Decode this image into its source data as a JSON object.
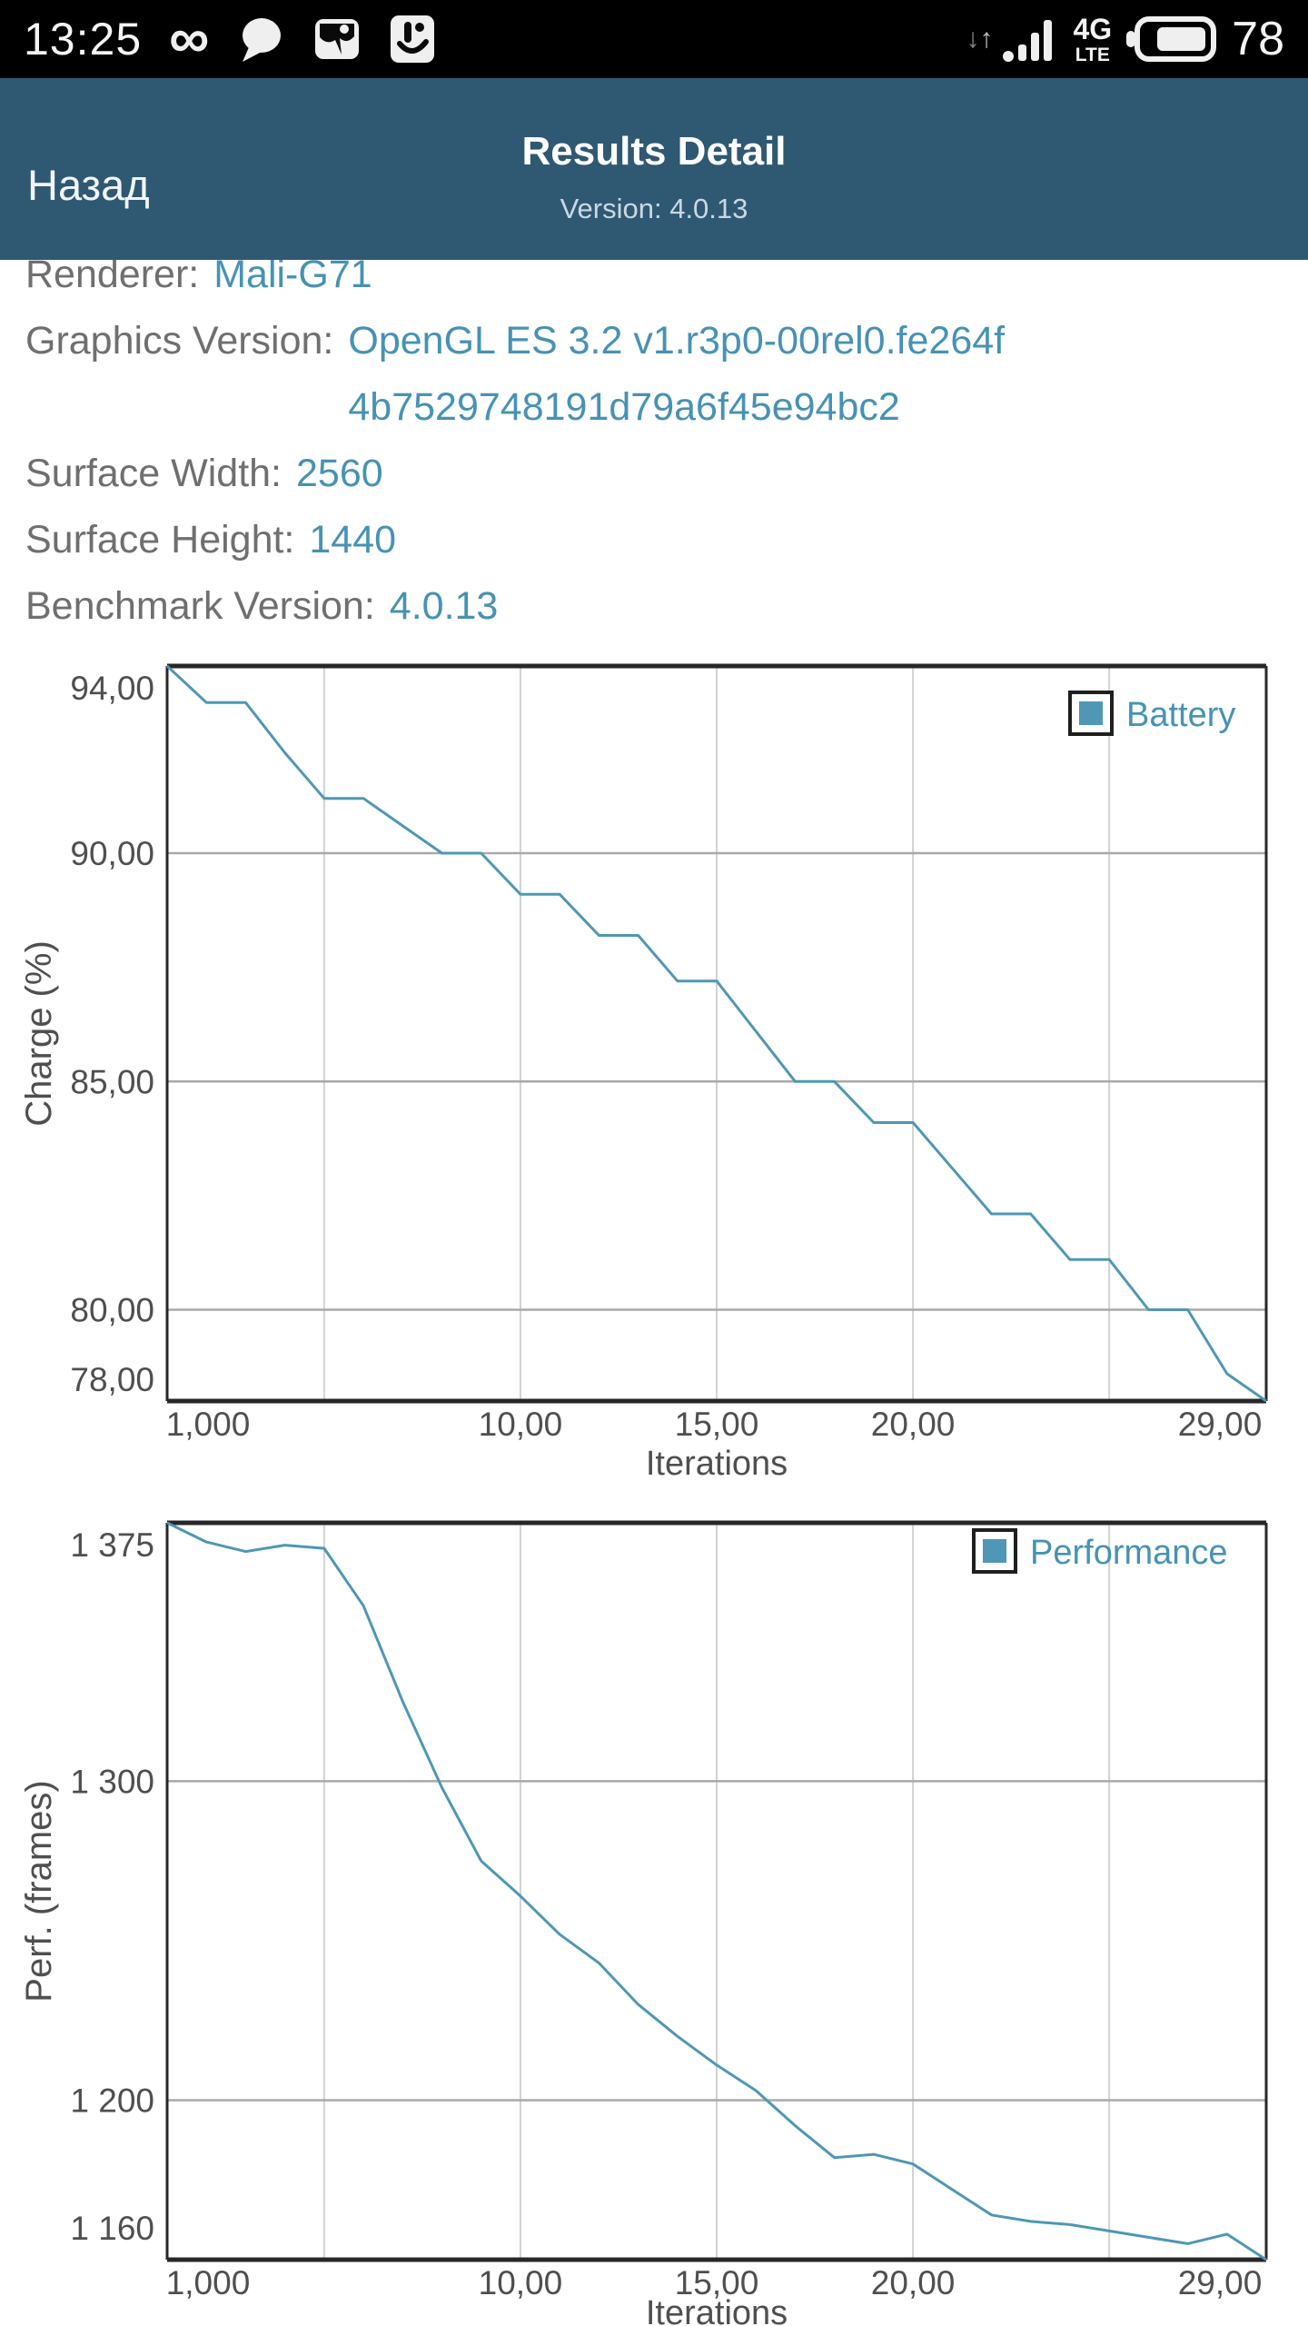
{
  "colors": {
    "header_bg": "#2f5873",
    "accent": "#4792b3",
    "line": "#4f97b4",
    "tick_text": "#4f4f4f",
    "grid_vertical": "#d2d2d2",
    "grid_horizontal": "#a9a9a9",
    "frame": "#272727",
    "legend_border": "#1f1f1f",
    "status_icon": "#efefef"
  },
  "status_bar": {
    "time": "13:25",
    "infinity_glyph": "∞",
    "arrow_down_glyph": "↓",
    "arrow_up_glyph": "↑",
    "network_type_line1": "4G",
    "network_type_line2": "LTE",
    "battery_percent_text": "78",
    "battery_level": 0.78,
    "icons_left": [
      "infinity-icon",
      "chat-bubble-icon",
      "gallery-icon",
      "touchpal-icon"
    ],
    "icons_right": [
      "data-activity-arrows",
      "signal-strength-icon",
      "network-type-label",
      "battery-icon"
    ]
  },
  "header": {
    "back_label": "Назад",
    "title": "Results Detail",
    "subtitle": "Version: 4.0.13"
  },
  "info": {
    "rows": [
      {
        "label": "Renderer:",
        "value": "Mali-G71"
      },
      {
        "label": "Graphics Version:",
        "value": "OpenGL ES 3.2 v1.r3p0-00rel0.fe264f",
        "value2": "4b7529748191d79a6f45e94bc2"
      },
      {
        "label": "Surface Width:",
        "value": "2560"
      },
      {
        "label": "Surface Height:",
        "value": "1440"
      },
      {
        "label": "Benchmark Version:",
        "value": "4.0.13"
      }
    ]
  },
  "chart_data": [
    {
      "type": "line",
      "legend": "Battery",
      "xlabel": "Iterations",
      "ylabel": "Charge (%)",
      "xlim": [
        1,
        29
      ],
      "ylim": [
        78.0,
        94.1
      ],
      "grid_x": [
        5,
        10,
        15,
        20,
        25
      ],
      "grid_y": [
        90,
        85,
        80
      ],
      "x_ticks": [
        {
          "value": 1,
          "label": "1,000"
        },
        {
          "value": 10,
          "label": "10,00"
        },
        {
          "value": 15,
          "label": "15,00"
        },
        {
          "value": 20,
          "label": "20,00"
        },
        {
          "value": 29,
          "label": "29,00"
        }
      ],
      "y_ticks": [
        {
          "value": 94,
          "label": "94,00"
        },
        {
          "value": 90,
          "label": "90,00"
        },
        {
          "value": 85,
          "label": "85,00"
        },
        {
          "value": 80,
          "label": "80,00"
        },
        {
          "value": 78,
          "label": "78,00"
        }
      ],
      "x": [
        1,
        2,
        3,
        4,
        5,
        6,
        7,
        8,
        9,
        10,
        11,
        12,
        13,
        14,
        15,
        16,
        17,
        18,
        19,
        20,
        21,
        22,
        23,
        24,
        25,
        26,
        27,
        28,
        29
      ],
      "values": [
        94.1,
        93.3,
        93.3,
        92.2,
        91.2,
        91.2,
        90.6,
        90.0,
        90.0,
        89.1,
        89.1,
        88.2,
        88.2,
        87.2,
        87.2,
        86.1,
        85.0,
        85.0,
        84.1,
        84.1,
        83.1,
        82.1,
        82.1,
        81.1,
        81.1,
        80.0,
        80.0,
        78.6,
        78.0
      ],
      "legend_position": "top-right",
      "grid": true
    },
    {
      "type": "line",
      "legend": "Performance",
      "xlabel": "Iterations",
      "ylabel": "Perf. (frames)",
      "xlim": [
        1,
        29
      ],
      "ylim": [
        1150,
        1381
      ],
      "grid_x": [
        5,
        10,
        15,
        20,
        25
      ],
      "grid_y": [
        1300,
        1200
      ],
      "x_ticks": [
        {
          "value": 1,
          "label": "1,000"
        },
        {
          "value": 10,
          "label": "10,00"
        },
        {
          "value": 15,
          "label": "15,00"
        },
        {
          "value": 20,
          "label": "20,00"
        },
        {
          "value": 29,
          "label": "29,00"
        }
      ],
      "y_ticks": [
        {
          "value": 1375,
          "label": "1 375"
        },
        {
          "value": 1300,
          "label": "1 300"
        },
        {
          "value": 1200,
          "label": "1 200"
        },
        {
          "value": 1160,
          "label": "1 160"
        }
      ],
      "x": [
        1,
        2,
        3,
        4,
        5,
        6,
        7,
        8,
        9,
        10,
        11,
        12,
        13,
        14,
        15,
        16,
        17,
        18,
        19,
        20,
        21,
        22,
        23,
        24,
        25,
        26,
        27,
        28,
        29
      ],
      "values": [
        1381,
        1375,
        1372,
        1374,
        1373,
        1355,
        1325,
        1298,
        1275,
        1264,
        1252,
        1243,
        1230,
        1220,
        1211,
        1203,
        1192,
        1182,
        1183,
        1180,
        1172,
        1164,
        1162,
        1161,
        1159,
        1157,
        1155,
        1158,
        1150
      ],
      "legend_position": "top-right",
      "grid": true
    }
  ]
}
